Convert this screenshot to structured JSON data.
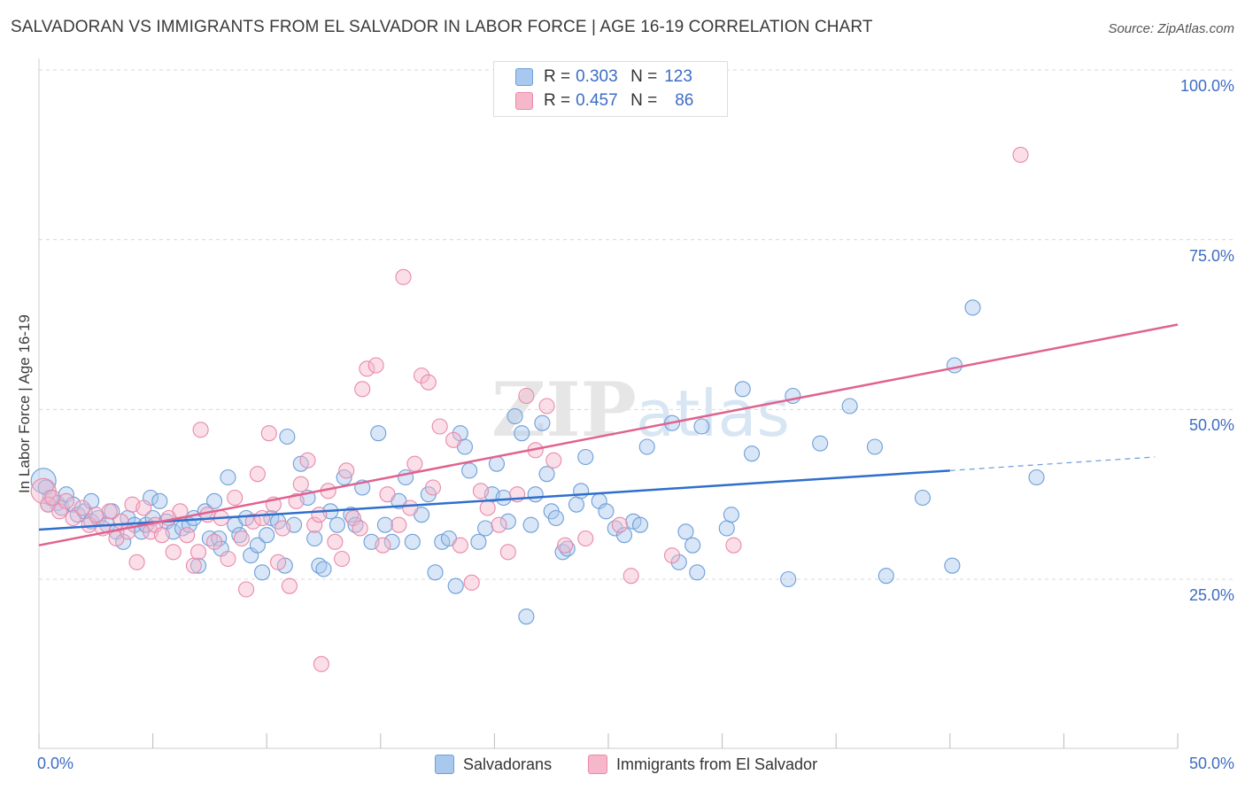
{
  "header": {
    "title": "SALVADORAN VS IMMIGRANTS FROM EL SALVADOR IN LABOR FORCE | AGE 16-19 CORRELATION CHART",
    "source": "Source: ZipAtlas.com"
  },
  "legend": {
    "rows": [
      {
        "r_label": "R =",
        "r_value": "0.303",
        "n_label": "N =",
        "n_value": "123"
      },
      {
        "r_label": "R =",
        "r_value": "0.457",
        "n_label": "N =",
        "n_value": "86"
      }
    ]
  },
  "colors": {
    "blue_fill": "#a9c8ee",
    "blue_stroke": "#6e9fd8",
    "blue_line": "#2f6fcc",
    "pink_fill": "#f6b7cb",
    "pink_stroke": "#e88aaa",
    "pink_line": "#e0628f",
    "axis_text": "#3d6cc4",
    "grid": "#d8d8d8"
  },
  "chart_data": {
    "type": "scatter",
    "title": "SALVADORAN VS IMMIGRANTS FROM EL SALVADOR IN LABOR FORCE | AGE 16-19 CORRELATION CHART",
    "ylabel": "In Labor Force | Age 16-19",
    "xlabel": "",
    "xlim": [
      0,
      50
    ],
    "ylim": [
      0,
      105
    ],
    "x_tick_labels": [
      "0.0%",
      "50.0%"
    ],
    "y_ticks": [
      25,
      50,
      75,
      100
    ],
    "y_tick_labels": [
      "25.0%",
      "50.0%",
      "75.0%",
      "100.0%"
    ],
    "grid": "horizontal dashed",
    "legend_position": "bottom",
    "series": [
      {
        "name": "Salvadorans",
        "color": "#a9c8ee",
        "r": 0.303,
        "n": 123,
        "trend": {
          "x": [
            0,
            40
          ],
          "y": [
            32.3,
            41.0
          ],
          "dashed_extension": {
            "x": [
              40,
              49
            ],
            "y": [
              41.0,
              43.0
            ]
          }
        },
        "points": [
          [
            0.2,
            39.5
          ],
          [
            0.3,
            38.5
          ],
          [
            0.5,
            37
          ],
          [
            0.8,
            36.2
          ],
          [
            1.0,
            35.5
          ],
          [
            1.2,
            37.5
          ],
          [
            1.5,
            36
          ],
          [
            1.7,
            34.5
          ],
          [
            2.0,
            35
          ],
          [
            2.3,
            33.5
          ],
          [
            2.3,
            36.5
          ],
          [
            2.6,
            34
          ],
          [
            3.0,
            33
          ],
          [
            3.2,
            35
          ],
          [
            3.4,
            32
          ],
          [
            3.7,
            30.5
          ],
          [
            3.9,
            34
          ],
          [
            4.2,
            33
          ],
          [
            4.5,
            32
          ],
          [
            4.7,
            33
          ],
          [
            4.9,
            37
          ],
          [
            5.0,
            34
          ],
          [
            5.3,
            36.5
          ],
          [
            5.6,
            33.5
          ],
          [
            5.9,
            32
          ],
          [
            6.3,
            32.5
          ],
          [
            6.6,
            33
          ],
          [
            6.8,
            34
          ],
          [
            7.0,
            27
          ],
          [
            7.3,
            35
          ],
          [
            7.5,
            31
          ],
          [
            7.7,
            36.5
          ],
          [
            7.9,
            31
          ],
          [
            8.0,
            29.5
          ],
          [
            8.3,
            40
          ],
          [
            8.6,
            33
          ],
          [
            8.8,
            31.5
          ],
          [
            9.1,
            34
          ],
          [
            9.3,
            28.5
          ],
          [
            9.6,
            30
          ],
          [
            9.8,
            26
          ],
          [
            10.0,
            31.5
          ],
          [
            10.2,
            34
          ],
          [
            10.5,
            33.5
          ],
          [
            10.8,
            27
          ],
          [
            10.9,
            46
          ],
          [
            11.2,
            33
          ],
          [
            11.5,
            42
          ],
          [
            11.8,
            37
          ],
          [
            12.1,
            31
          ],
          [
            12.3,
            27
          ],
          [
            12.5,
            26.5
          ],
          [
            12.8,
            35
          ],
          [
            13.1,
            33
          ],
          [
            13.4,
            40
          ],
          [
            13.7,
            34.5
          ],
          [
            13.9,
            33
          ],
          [
            14.2,
            38.5
          ],
          [
            14.6,
            30.5
          ],
          [
            14.9,
            46.5
          ],
          [
            15.2,
            33
          ],
          [
            15.5,
            30.5
          ],
          [
            15.8,
            36.5
          ],
          [
            16.1,
            40
          ],
          [
            16.4,
            30.5
          ],
          [
            16.8,
            34.5
          ],
          [
            17.1,
            37.5
          ],
          [
            17.4,
            26
          ],
          [
            17.7,
            30.5
          ],
          [
            18.0,
            31
          ],
          [
            18.3,
            24
          ],
          [
            18.5,
            46.5
          ],
          [
            18.7,
            44.5
          ],
          [
            18.9,
            41
          ],
          [
            19.3,
            30.5
          ],
          [
            19.6,
            32.5
          ],
          [
            19.9,
            37.5
          ],
          [
            20.1,
            42
          ],
          [
            20.4,
            37
          ],
          [
            20.6,
            33.5
          ],
          [
            20.9,
            49
          ],
          [
            21.2,
            46.5
          ],
          [
            21.4,
            19.5
          ],
          [
            21.6,
            33
          ],
          [
            21.8,
            37.5
          ],
          [
            22.1,
            48
          ],
          [
            22.3,
            40.5
          ],
          [
            22.5,
            35
          ],
          [
            22.7,
            34
          ],
          [
            23.0,
            29
          ],
          [
            23.2,
            29.5
          ],
          [
            23.6,
            36
          ],
          [
            23.8,
            38
          ],
          [
            24.0,
            43
          ],
          [
            24.6,
            36.5
          ],
          [
            24.9,
            35
          ],
          [
            25.3,
            32.5
          ],
          [
            25.7,
            31.5
          ],
          [
            26.1,
            33.5
          ],
          [
            26.4,
            33
          ],
          [
            26.7,
            44.5
          ],
          [
            27.8,
            48
          ],
          [
            28.1,
            27.5
          ],
          [
            28.4,
            32
          ],
          [
            28.7,
            30
          ],
          [
            28.9,
            26
          ],
          [
            29.1,
            47.5
          ],
          [
            30.2,
            32.5
          ],
          [
            30.4,
            34.5
          ],
          [
            30.9,
            53
          ],
          [
            31.3,
            43.5
          ],
          [
            32.9,
            25
          ],
          [
            33.1,
            52
          ],
          [
            34.3,
            45
          ],
          [
            35.6,
            50.5
          ],
          [
            36.7,
            44.5
          ],
          [
            37.2,
            25.5
          ],
          [
            38.8,
            37
          ],
          [
            40.1,
            27
          ],
          [
            40.2,
            56.5
          ],
          [
            41.0,
            65
          ],
          [
            43.8,
            40
          ],
          [
            0.4,
            36
          ]
        ],
        "note_sizes": "first point drawn larger"
      },
      {
        "name": "Immigrants from El Salvador",
        "color": "#f6b7cb",
        "r": 0.457,
        "n": 86,
        "trend": {
          "x": [
            0,
            50
          ],
          "y": [
            30.0,
            62.5
          ]
        },
        "points": [
          [
            0.2,
            38
          ],
          [
            0.4,
            36
          ],
          [
            0.6,
            37
          ],
          [
            0.9,
            35
          ],
          [
            1.2,
            36.5
          ],
          [
            1.5,
            34
          ],
          [
            1.9,
            35.5
          ],
          [
            2.2,
            33
          ],
          [
            2.5,
            34.5
          ],
          [
            2.8,
            32.5
          ],
          [
            3.1,
            35
          ],
          [
            3.4,
            31
          ],
          [
            3.6,
            33.5
          ],
          [
            3.9,
            32
          ],
          [
            4.1,
            36
          ],
          [
            4.3,
            27.5
          ],
          [
            4.6,
            35.5
          ],
          [
            4.9,
            32
          ],
          [
            5.1,
            33
          ],
          [
            5.4,
            31.5
          ],
          [
            5.7,
            34
          ],
          [
            5.9,
            29
          ],
          [
            6.2,
            35
          ],
          [
            6.5,
            31.5
          ],
          [
            6.8,
            27
          ],
          [
            7.0,
            29
          ],
          [
            7.1,
            47
          ],
          [
            7.4,
            34.5
          ],
          [
            7.7,
            30.5
          ],
          [
            8.0,
            34
          ],
          [
            8.3,
            28
          ],
          [
            8.6,
            37
          ],
          [
            8.9,
            31
          ],
          [
            9.1,
            23.5
          ],
          [
            9.4,
            33.5
          ],
          [
            9.6,
            40.5
          ],
          [
            9.8,
            34
          ],
          [
            10.1,
            46.5
          ],
          [
            10.3,
            36
          ],
          [
            10.5,
            27.5
          ],
          [
            10.7,
            32.5
          ],
          [
            11.0,
            24
          ],
          [
            11.3,
            36.5
          ],
          [
            11.5,
            39
          ],
          [
            11.8,
            42.5
          ],
          [
            12.1,
            33
          ],
          [
            12.3,
            34.5
          ],
          [
            12.4,
            12.5
          ],
          [
            12.7,
            38
          ],
          [
            13.0,
            30.5
          ],
          [
            13.3,
            28
          ],
          [
            13.5,
            41
          ],
          [
            13.8,
            34
          ],
          [
            14.1,
            32.5
          ],
          [
            14.2,
            53
          ],
          [
            14.4,
            56
          ],
          [
            14.8,
            56.5
          ],
          [
            15.1,
            30
          ],
          [
            15.3,
            37.5
          ],
          [
            15.8,
            33
          ],
          [
            16.0,
            69.5
          ],
          [
            16.3,
            35.5
          ],
          [
            16.5,
            42
          ],
          [
            16.8,
            55
          ],
          [
            17.1,
            54
          ],
          [
            17.3,
            38.5
          ],
          [
            17.6,
            47.5
          ],
          [
            18.2,
            45.5
          ],
          [
            18.5,
            30
          ],
          [
            19.0,
            24.5
          ],
          [
            19.4,
            38
          ],
          [
            19.7,
            35.5
          ],
          [
            20.2,
            33
          ],
          [
            20.6,
            29
          ],
          [
            21.0,
            37.5
          ],
          [
            21.4,
            52
          ],
          [
            21.8,
            44
          ],
          [
            22.3,
            50.5
          ],
          [
            22.6,
            42.5
          ],
          [
            23.1,
            30
          ],
          [
            24.0,
            31
          ],
          [
            25.5,
            33
          ],
          [
            26.0,
            25.5
          ],
          [
            27.8,
            28.5
          ],
          [
            30.5,
            30
          ],
          [
            43.1,
            87.5
          ]
        ]
      }
    ]
  },
  "bottom_legend": {
    "items": [
      {
        "label": "Salvadorans"
      },
      {
        "label": "Immigrants from El Salvador"
      }
    ]
  },
  "watermark": {
    "text1": "ZIP",
    "text2": "atlas"
  }
}
